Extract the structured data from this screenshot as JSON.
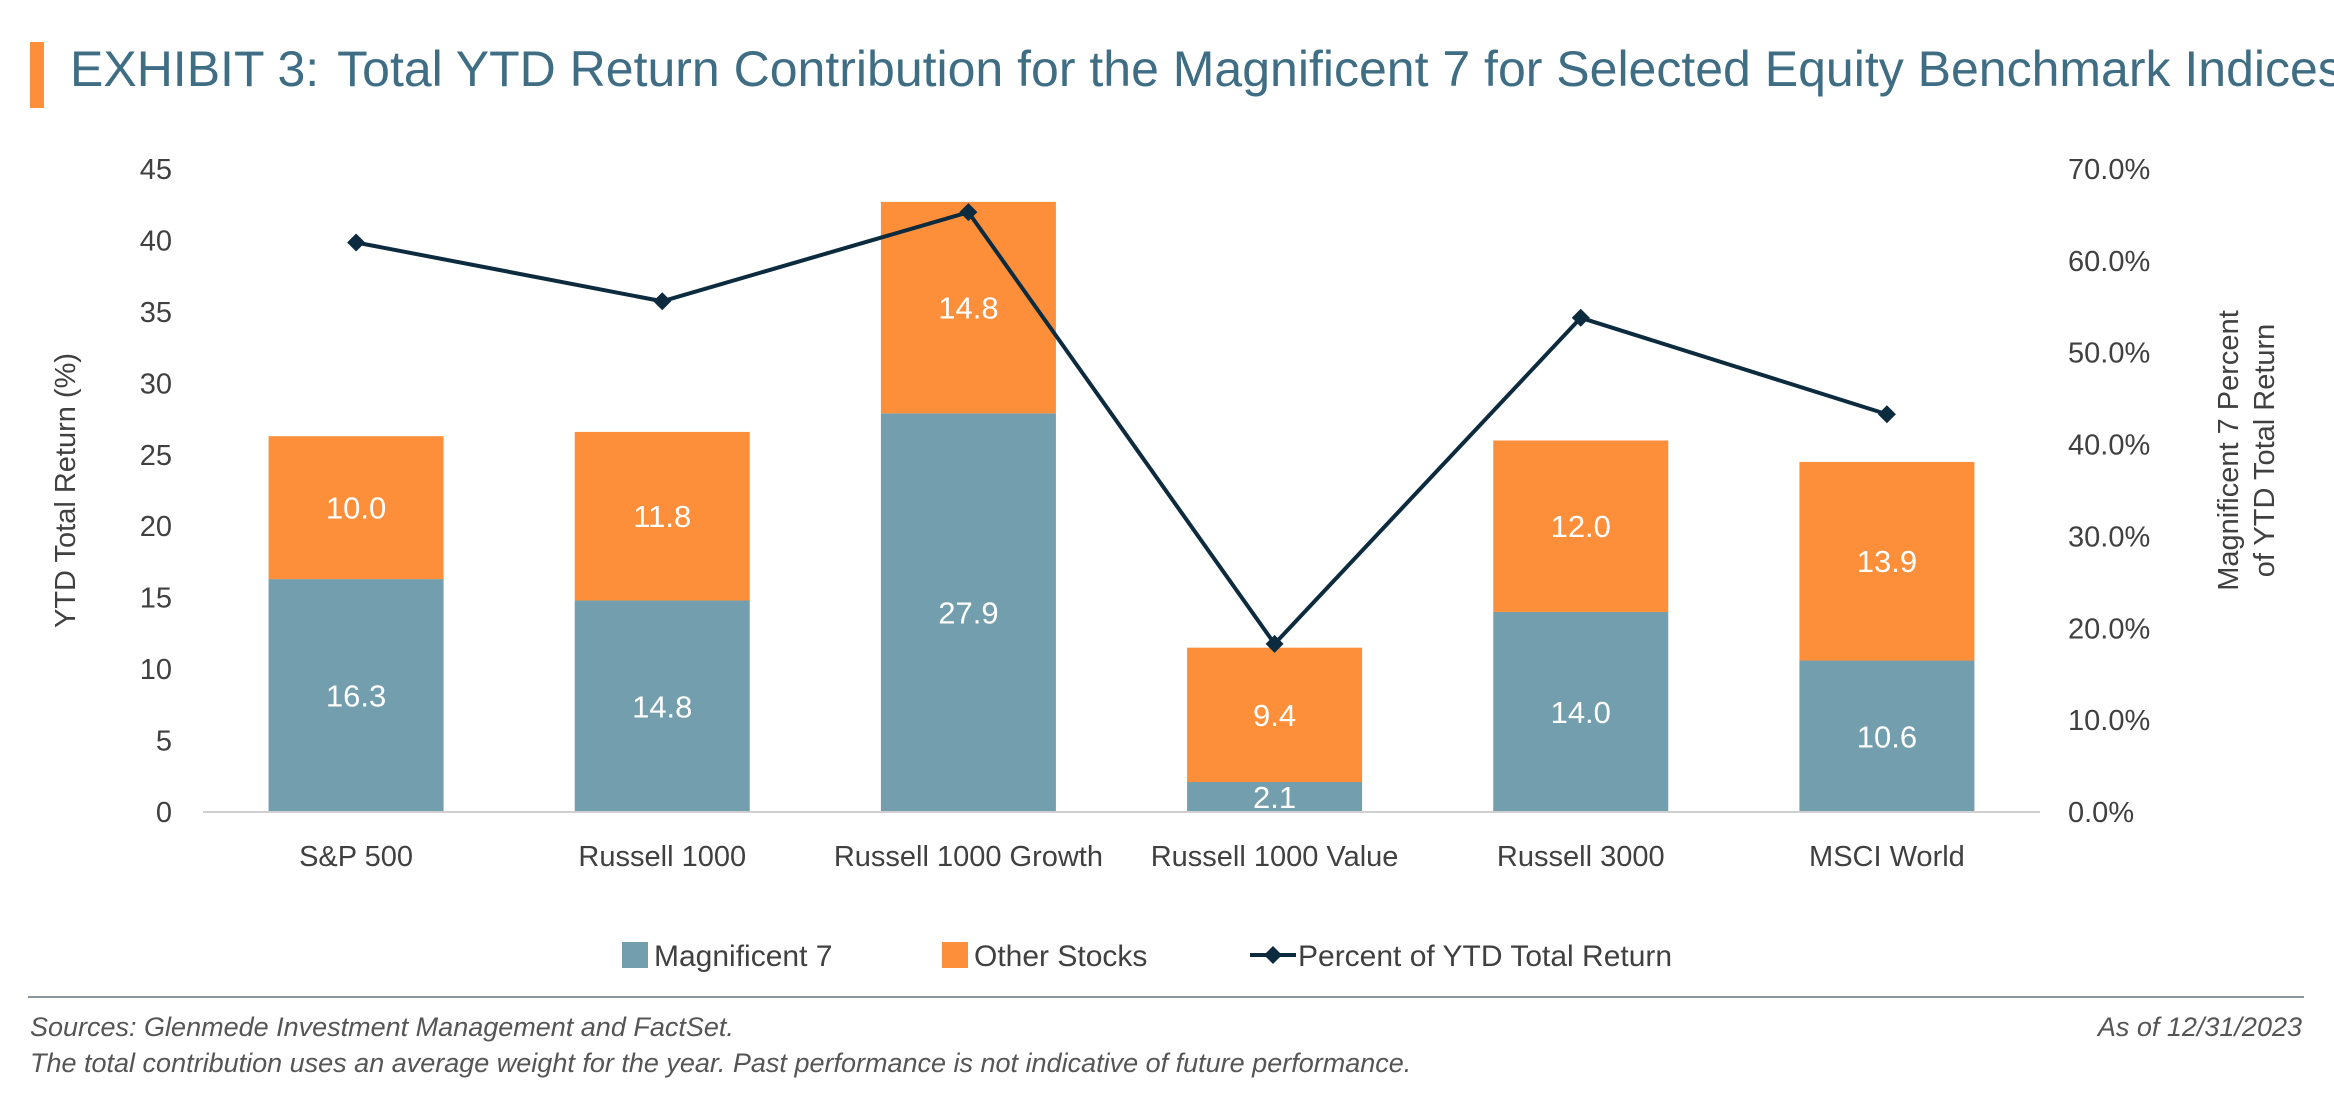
{
  "header": {
    "exhibit": "EXHIBIT 3:",
    "title": "Total YTD Return Contribution for the Magnificent 7 for Selected Equity Benchmark Indices"
  },
  "colors": {
    "mag7": "#739eae",
    "other": "#fd8f3a",
    "line": "#0d2b3e",
    "accent": "#fd8f3a",
    "title": "#3f6e84"
  },
  "chart_data": {
    "type": "bar",
    "stacked": true,
    "categories": [
      "S&P 500",
      "Russell 1000",
      "Russell 1000 Growth",
      "Russell 1000 Value",
      "Russell 3000",
      "MSCI World"
    ],
    "series": [
      {
        "name": "Magnificent 7",
        "type": "bar",
        "axis": "left",
        "values": [
          16.3,
          14.8,
          27.9,
          2.1,
          14.0,
          10.6
        ],
        "labels": [
          "16.3",
          "14.8",
          "27.9",
          "2.1",
          "14.0",
          "10.6"
        ]
      },
      {
        "name": "Other Stocks",
        "type": "bar",
        "axis": "left",
        "values": [
          10.0,
          11.8,
          14.8,
          9.4,
          12.0,
          13.9
        ],
        "labels": [
          "10.0",
          "11.8",
          "14.8",
          "9.4",
          "12.0",
          "13.9"
        ]
      },
      {
        "name": "Percent of YTD Total Return",
        "type": "line",
        "marker": "diamond",
        "axis": "right",
        "values": [
          62.0,
          55.6,
          65.3,
          18.3,
          53.8,
          43.3
        ]
      }
    ],
    "ylabel": "YTD Total Return (%)",
    "ylim": [
      0,
      45
    ],
    "yticks": [
      "0",
      "5",
      "10",
      "15",
      "20",
      "25",
      "30",
      "35",
      "40",
      "45"
    ],
    "y2label": [
      "Magnificent 7 Percent",
      "of YTD Total Return"
    ],
    "y2lim": [
      0,
      70
    ],
    "y2ticks": [
      "0.0%",
      "10.0%",
      "20.0%",
      "30.0%",
      "40.0%",
      "50.0%",
      "60.0%",
      "70.0%"
    ],
    "grid": false,
    "legend": "bottom"
  },
  "footer": {
    "sources": "Sources: Glenmede Investment Management and FactSet.",
    "as_of": "As of 12/31/2023",
    "note": "The total contribution uses an average weight for the year. Past performance is not indicative of future performance."
  }
}
